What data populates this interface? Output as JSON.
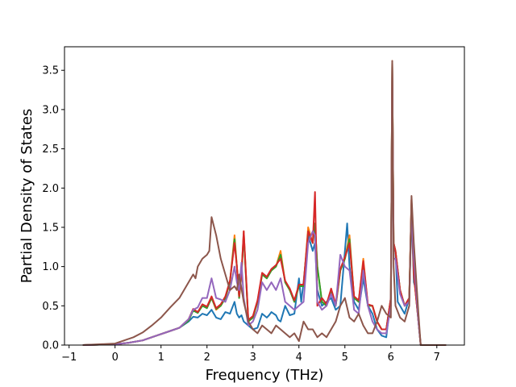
{
  "chart_data": {
    "type": "line",
    "title": "",
    "xlabel": "Frequency (THz)",
    "ylabel": "Partial Density of States",
    "xlim": [
      -1.1,
      7.6
    ],
    "ylim": [
      0.0,
      3.8
    ],
    "xticks": [
      -1,
      0,
      1,
      2,
      3,
      4,
      5,
      6,
      7
    ],
    "xtick_labels": [
      "−1",
      "0",
      "1",
      "2",
      "3",
      "4",
      "5",
      "6",
      "7"
    ],
    "yticks": [
      0.0,
      0.5,
      1.0,
      1.5,
      2.0,
      2.5,
      3.0,
      3.5
    ],
    "ytick_labels": [
      "0.0",
      "0.5",
      "1.0",
      "1.5",
      "2.0",
      "2.5",
      "3.0",
      "3.5"
    ],
    "grid": false,
    "legend": "none",
    "series": [
      {
        "color": "#1f77b4",
        "x": [
          -0.7,
          0.0,
          0.3,
          0.6,
          0.9,
          1.2,
          1.4,
          1.6,
          1.7,
          1.8,
          1.9,
          2.0,
          2.1,
          2.2,
          2.3,
          2.4,
          2.5,
          2.6,
          2.65,
          2.7,
          2.75,
          2.8,
          2.9,
          3.0,
          3.1,
          3.2,
          3.3,
          3.35,
          3.4,
          3.5,
          3.55,
          3.6,
          3.7,
          3.8,
          3.9,
          4.0,
          4.05,
          4.1,
          4.2,
          4.3,
          4.35,
          4.4,
          4.5,
          4.6,
          4.7,
          4.8,
          4.9,
          5.0,
          5.05,
          5.1,
          5.2,
          5.3,
          5.4,
          5.5,
          5.6,
          5.7,
          5.8,
          5.9,
          6.0,
          6.03,
          6.06,
          6.1,
          6.15,
          6.2,
          6.3,
          6.4,
          6.45,
          6.5,
          6.55,
          6.6,
          6.65,
          6.7,
          7.0,
          7.2
        ],
        "y": [
          0.0,
          0.01,
          0.03,
          0.06,
          0.12,
          0.18,
          0.22,
          0.3,
          0.36,
          0.35,
          0.4,
          0.38,
          0.45,
          0.35,
          0.33,
          0.42,
          0.4,
          0.55,
          0.4,
          0.35,
          0.38,
          0.3,
          0.25,
          0.2,
          0.22,
          0.4,
          0.35,
          0.38,
          0.42,
          0.38,
          0.32,
          0.3,
          0.5,
          0.38,
          0.4,
          0.85,
          0.55,
          0.8,
          1.4,
          1.2,
          1.3,
          0.7,
          0.5,
          0.55,
          0.6,
          0.45,
          0.5,
          1.2,
          1.55,
          1.0,
          0.55,
          0.45,
          0.85,
          0.5,
          0.4,
          0.2,
          0.12,
          0.1,
          0.6,
          3.6,
          1.2,
          1.2,
          0.55,
          0.5,
          0.4,
          0.6,
          1.7,
          0.8,
          0.7,
          0.3,
          0.0,
          0.0,
          0.0,
          0.0
        ]
      },
      {
        "color": "#ff7f0e",
        "x": [
          -0.7,
          0.0,
          0.3,
          0.6,
          0.9,
          1.2,
          1.4,
          1.6,
          1.7,
          1.8,
          1.9,
          2.0,
          2.1,
          2.2,
          2.3,
          2.4,
          2.5,
          2.6,
          2.65,
          2.7,
          2.75,
          2.8,
          2.9,
          3.0,
          3.1,
          3.2,
          3.3,
          3.4,
          3.5,
          3.6,
          3.7,
          3.8,
          3.9,
          4.0,
          4.1,
          4.2,
          4.3,
          4.35,
          4.4,
          4.5,
          4.6,
          4.7,
          4.8,
          4.9,
          5.0,
          5.1,
          5.2,
          5.3,
          5.4,
          5.5,
          5.6,
          5.7,
          5.8,
          5.9,
          6.0,
          6.03,
          6.06,
          6.1,
          6.2,
          6.3,
          6.4,
          6.45,
          6.5,
          6.6,
          6.65,
          6.7,
          7.0,
          7.2
        ],
        "y": [
          0.0,
          0.01,
          0.03,
          0.06,
          0.12,
          0.18,
          0.22,
          0.32,
          0.45,
          0.42,
          0.5,
          0.48,
          0.6,
          0.45,
          0.5,
          0.6,
          0.8,
          1.4,
          1.0,
          0.6,
          0.9,
          1.45,
          0.3,
          0.35,
          0.55,
          0.9,
          0.85,
          0.95,
          1.0,
          1.2,
          0.8,
          0.7,
          0.55,
          0.75,
          0.75,
          1.5,
          1.3,
          1.55,
          1.0,
          0.55,
          0.5,
          0.7,
          0.5,
          0.95,
          1.1,
          1.4,
          0.6,
          0.55,
          1.1,
          0.5,
          0.5,
          0.3,
          0.2,
          0.2,
          0.6,
          3.62,
          1.3,
          1.2,
          0.7,
          0.5,
          0.6,
          1.85,
          0.9,
          0.3,
          0.0,
          0.0,
          0.0,
          0.0
        ]
      },
      {
        "color": "#2ca02c",
        "x": [
          -0.7,
          0.0,
          0.3,
          0.6,
          0.9,
          1.2,
          1.4,
          1.6,
          1.7,
          1.8,
          1.9,
          2.0,
          2.1,
          2.2,
          2.3,
          2.4,
          2.5,
          2.6,
          2.65,
          2.7,
          2.75,
          2.8,
          2.9,
          3.0,
          3.1,
          3.2,
          3.3,
          3.4,
          3.5,
          3.6,
          3.7,
          3.8,
          3.9,
          4.0,
          4.1,
          4.2,
          4.3,
          4.35,
          4.4,
          4.5,
          4.6,
          4.7,
          4.8,
          4.9,
          5.0,
          5.1,
          5.2,
          5.3,
          5.4,
          5.5,
          5.6,
          5.7,
          5.8,
          5.9,
          6.0,
          6.03,
          6.06,
          6.1,
          6.2,
          6.3,
          6.4,
          6.45,
          6.5,
          6.6,
          6.65,
          6.7,
          7.0,
          7.2
        ],
        "y": [
          0.0,
          0.01,
          0.03,
          0.06,
          0.12,
          0.18,
          0.22,
          0.31,
          0.44,
          0.41,
          0.5,
          0.47,
          0.6,
          0.46,
          0.5,
          0.6,
          0.8,
          1.35,
          1.0,
          0.6,
          0.9,
          1.4,
          0.3,
          0.35,
          0.55,
          0.9,
          0.85,
          0.95,
          1.0,
          1.15,
          0.8,
          0.7,
          0.55,
          0.75,
          0.75,
          1.45,
          1.3,
          1.55,
          1.0,
          0.55,
          0.5,
          0.7,
          0.5,
          0.95,
          1.1,
          1.35,
          0.6,
          0.55,
          1.05,
          0.5,
          0.5,
          0.3,
          0.2,
          0.2,
          0.6,
          3.6,
          1.3,
          1.2,
          0.7,
          0.5,
          0.6,
          1.8,
          0.9,
          0.3,
          0.0,
          0.0,
          0.0,
          0.0
        ]
      },
      {
        "color": "#d62728",
        "x": [
          -0.7,
          0.0,
          0.3,
          0.6,
          0.9,
          1.2,
          1.4,
          1.6,
          1.7,
          1.8,
          1.9,
          2.0,
          2.1,
          2.2,
          2.3,
          2.4,
          2.5,
          2.6,
          2.65,
          2.7,
          2.75,
          2.8,
          2.9,
          3.0,
          3.1,
          3.2,
          3.3,
          3.4,
          3.5,
          3.6,
          3.7,
          3.8,
          3.9,
          4.0,
          4.1,
          4.2,
          4.3,
          4.35,
          4.4,
          4.5,
          4.6,
          4.7,
          4.8,
          4.9,
          5.0,
          5.1,
          5.2,
          5.3,
          5.4,
          5.5,
          5.6,
          5.7,
          5.8,
          5.9,
          6.0,
          6.03,
          6.06,
          6.1,
          6.2,
          6.3,
          6.4,
          6.45,
          6.5,
          6.6,
          6.65,
          6.7,
          7.0,
          7.2
        ],
        "y": [
          0.0,
          0.01,
          0.03,
          0.06,
          0.12,
          0.18,
          0.22,
          0.33,
          0.46,
          0.42,
          0.52,
          0.49,
          0.62,
          0.47,
          0.52,
          0.62,
          0.82,
          1.3,
          1.0,
          0.62,
          0.92,
          1.45,
          0.32,
          0.37,
          0.57,
          0.92,
          0.87,
          0.97,
          1.02,
          1.1,
          0.82,
          0.72,
          0.57,
          0.77,
          0.77,
          1.45,
          1.3,
          1.95,
          0.5,
          0.6,
          0.52,
          0.72,
          0.52,
          0.97,
          1.12,
          1.3,
          0.62,
          0.57,
          1.07,
          0.52,
          0.5,
          0.3,
          0.2,
          0.2,
          0.6,
          3.6,
          1.3,
          1.2,
          0.7,
          0.5,
          0.6,
          1.85,
          0.9,
          0.3,
          0.0,
          0.0,
          0.0,
          0.0
        ]
      },
      {
        "color": "#9467bd",
        "x": [
          -0.7,
          0.0,
          0.3,
          0.6,
          0.9,
          1.2,
          1.4,
          1.6,
          1.7,
          1.8,
          1.9,
          2.0,
          2.1,
          2.2,
          2.3,
          2.4,
          2.5,
          2.6,
          2.65,
          2.7,
          2.75,
          2.8,
          2.9,
          3.0,
          3.1,
          3.2,
          3.3,
          3.4,
          3.5,
          3.6,
          3.7,
          3.8,
          3.9,
          4.0,
          4.1,
          4.2,
          4.3,
          4.35,
          4.4,
          4.5,
          4.6,
          4.7,
          4.8,
          4.9,
          5.0,
          5.1,
          5.2,
          5.3,
          5.4,
          5.5,
          5.6,
          5.7,
          5.8,
          5.9,
          6.0,
          6.03,
          6.06,
          6.1,
          6.2,
          6.3,
          6.4,
          6.45,
          6.5,
          6.6,
          6.65,
          6.7,
          7.0,
          7.2
        ],
        "y": [
          0.0,
          0.01,
          0.03,
          0.06,
          0.12,
          0.18,
          0.22,
          0.33,
          0.45,
          0.48,
          0.6,
          0.6,
          0.85,
          0.6,
          0.58,
          0.55,
          0.7,
          1.0,
          0.8,
          0.7,
          1.05,
          0.6,
          0.25,
          0.3,
          0.45,
          0.8,
          0.7,
          0.8,
          0.7,
          0.85,
          0.55,
          0.5,
          0.45,
          0.5,
          0.55,
          1.3,
          1.45,
          1.4,
          0.55,
          0.45,
          0.5,
          0.65,
          0.5,
          1.15,
          1.0,
          0.95,
          0.45,
          0.4,
          0.95,
          0.5,
          0.3,
          0.2,
          0.15,
          0.15,
          0.5,
          3.55,
          1.1,
          1.1,
          0.65,
          0.5,
          0.55,
          1.7,
          1.1,
          0.3,
          0.0,
          0.0,
          0.0,
          0.0
        ]
      },
      {
        "color": "#8c564b",
        "x": [
          -0.7,
          0.0,
          0.2,
          0.4,
          0.6,
          0.8,
          1.0,
          1.2,
          1.4,
          1.6,
          1.7,
          1.75,
          1.8,
          1.9,
          2.0,
          2.05,
          2.1,
          2.2,
          2.3,
          2.4,
          2.5,
          2.6,
          2.65,
          2.7,
          2.8,
          2.9,
          3.0,
          3.1,
          3.2,
          3.3,
          3.4,
          3.5,
          3.6,
          3.7,
          3.8,
          3.9,
          4.0,
          4.1,
          4.2,
          4.3,
          4.4,
          4.5,
          4.6,
          4.7,
          4.8,
          4.9,
          5.0,
          5.1,
          5.2,
          5.3,
          5.4,
          5.5,
          5.6,
          5.7,
          5.8,
          5.9,
          6.0,
          6.03,
          6.06,
          6.1,
          6.2,
          6.3,
          6.4,
          6.45,
          6.5,
          6.6,
          6.65,
          6.7,
          7.0,
          7.2
        ],
        "y": [
          0.0,
          0.02,
          0.06,
          0.1,
          0.16,
          0.25,
          0.35,
          0.48,
          0.6,
          0.8,
          0.9,
          0.85,
          1.0,
          1.1,
          1.15,
          1.2,
          1.63,
          1.4,
          1.1,
          0.9,
          0.7,
          0.75,
          0.7,
          0.9,
          0.55,
          0.3,
          0.2,
          0.15,
          0.25,
          0.2,
          0.15,
          0.25,
          0.2,
          0.15,
          0.1,
          0.15,
          0.05,
          0.3,
          0.2,
          0.2,
          0.1,
          0.15,
          0.1,
          0.2,
          0.3,
          0.5,
          0.6,
          0.35,
          0.3,
          0.4,
          0.25,
          0.15,
          0.15,
          0.3,
          0.5,
          0.4,
          0.35,
          3.62,
          1.0,
          0.5,
          0.35,
          0.3,
          0.5,
          1.9,
          1.3,
          0.4,
          0.0,
          0.0,
          0.0,
          0.0
        ]
      }
    ]
  }
}
